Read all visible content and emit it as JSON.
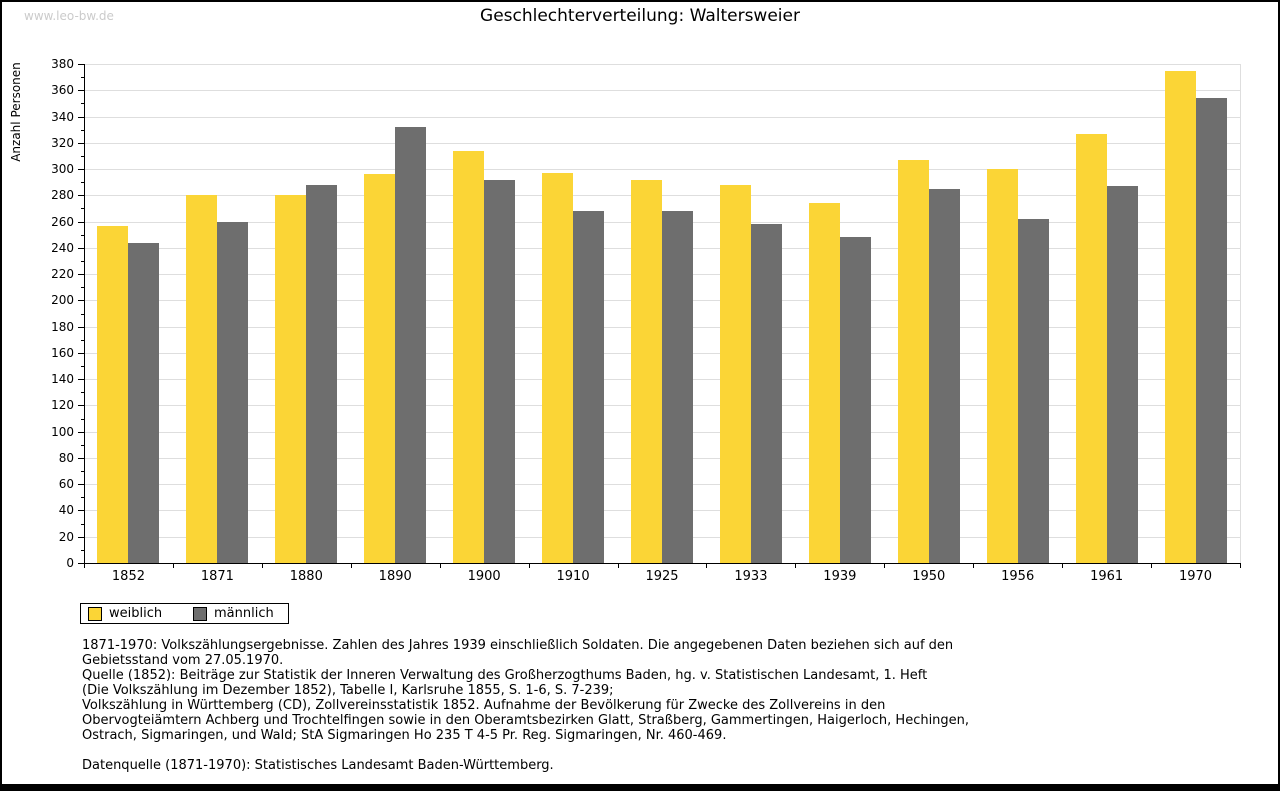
{
  "watermark": "www.leo-bw.de",
  "header": {
    "title": "Geschlechterverteilung: Waltersweier"
  },
  "legend": {
    "weiblich_label": "weiblich",
    "maennlich_label": "männlich"
  },
  "colors": {
    "weiblich": "#FBD536",
    "maennlich": "#6E6E6E",
    "grid": "#DEDEDE",
    "axis": "#000000",
    "watermark": "#CBCBCB"
  },
  "chart_data": {
    "type": "bar",
    "title": "Geschlechterverteilung: Waltersweier",
    "xlabel": "",
    "ylabel": "Anzahl Personen",
    "ylim": [
      0,
      380
    ],
    "ytick_step": 20,
    "ytick_minor_step": 10,
    "grid": true,
    "legend_position": "bottom-left",
    "categories": [
      "1852",
      "1871",
      "1880",
      "1890",
      "1900",
      "1910",
      "1925",
      "1933",
      "1939",
      "1950",
      "1956",
      "1961",
      "1970"
    ],
    "series": [
      {
        "name": "weiblich",
        "color": "#FBD536",
        "values": [
          257,
          280,
          280,
          296,
          314,
          297,
          292,
          288,
          274,
          307,
          300,
          327,
          375
        ]
      },
      {
        "name": "männlich",
        "color": "#6E6E6E",
        "values": [
          244,
          260,
          288,
          332,
          292,
          268,
          268,
          258,
          248,
          285,
          262,
          287,
          354
        ]
      }
    ]
  },
  "footnotes": {
    "lines": [
      "1871-1970: Volkszählungsergebnisse. Zahlen des Jahres 1939 einschließlich Soldaten. Die angegebenen Daten beziehen sich auf den",
      "Gebietsstand vom 27.05.1970.",
      "Quelle (1852): Beiträge zur Statistik der Inneren Verwaltung des Großherzogthums Baden, hg. v. Statistischen Landesamt, 1. Heft",
      "(Die Volkszählung im Dezember 1852), Tabelle I, Karlsruhe 1855, S. 1-6, S. 7-239;",
      "Volkszählung in Württemberg (CD), Zollvereinsstatistik 1852. Aufnahme der Bevölkerung für Zwecke des Zollvereins in den",
      "Obervogteiämtern Achberg und Trochtelfingen sowie in den Oberamtsbezirken Glatt, Straßberg, Gammertingen, Haigerloch, Hechingen,",
      "Ostrach, Sigmaringen, und Wald; StA Sigmaringen Ho 235 T 4-5 Pr. Reg. Sigmaringen, Nr. 460-469.",
      "",
      "Datenquelle (1871-1970): Statistisches Landesamt Baden-Württemberg."
    ]
  }
}
